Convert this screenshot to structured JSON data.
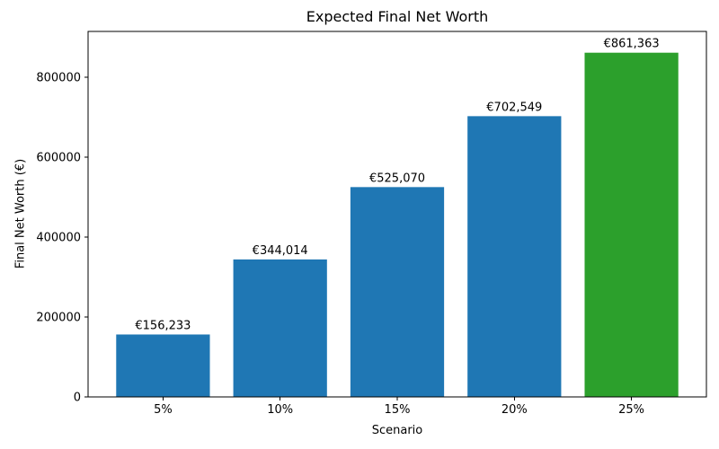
{
  "figure": {
    "title": "Expected Final Net Worth",
    "xlabel": "Scenario",
    "ylabel": "Final Net Worth (€)"
  },
  "chart_data": {
    "type": "bar",
    "title": "Expected Final Net Worth",
    "xlabel": "Scenario",
    "ylabel": "Final Net Worth (€)",
    "categories": [
      "5%",
      "10%",
      "15%",
      "20%",
      "25%"
    ],
    "values": [
      156233,
      344014,
      525070,
      702549,
      861363
    ],
    "bar_labels": [
      "€156,233",
      "€344,014",
      "€525,070",
      "€702,549",
      "€861,363"
    ],
    "bar_colors": [
      "#1f77b4",
      "#1f77b4",
      "#1f77b4",
      "#1f77b4",
      "#2ca02c"
    ],
    "yticks": [
      0,
      200000,
      400000,
      600000,
      800000
    ],
    "ytick_labels": [
      "0",
      "200000",
      "400000",
      "600000",
      "800000"
    ],
    "ylim": [
      0,
      914600
    ],
    "grid": false,
    "legend": null,
    "colors": {
      "default_bar": "#1f77b4",
      "highlight_bar": "#2ca02c",
      "axis": "#000000",
      "background": "#ffffff",
      "text": "#000000"
    }
  }
}
